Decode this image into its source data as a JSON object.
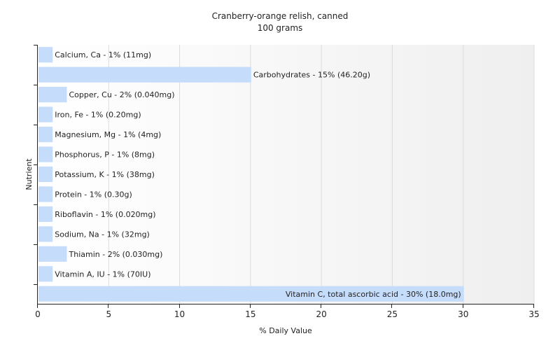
{
  "chart_data": {
    "type": "bar",
    "orientation": "horizontal",
    "title": "Cranberry-orange relish, canned",
    "subtitle": "100 grams",
    "xlabel": "% Daily Value",
    "ylabel": "Nutrient",
    "xlim": [
      0,
      35
    ],
    "xticks": [
      0,
      5,
      10,
      15,
      20,
      25,
      30,
      35
    ],
    "grid": true,
    "bar_color": "#c6dcfb",
    "bars": [
      {
        "label": "Calcium, Ca - 1% (11mg)",
        "value": 1
      },
      {
        "label": "Carbohydrates - 15% (46.20g)",
        "value": 15
      },
      {
        "label": "Copper, Cu - 2% (0.040mg)",
        "value": 2
      },
      {
        "label": "Iron, Fe - 1% (0.20mg)",
        "value": 1
      },
      {
        "label": "Magnesium, Mg - 1% (4mg)",
        "value": 1
      },
      {
        "label": "Phosphorus, P - 1% (8mg)",
        "value": 1
      },
      {
        "label": "Potassium, K - 1% (38mg)",
        "value": 1
      },
      {
        "label": "Protein - 1% (0.30g)",
        "value": 1
      },
      {
        "label": "Riboflavin - 1% (0.020mg)",
        "value": 1
      },
      {
        "label": "Sodium, Na - 1% (32mg)",
        "value": 1
      },
      {
        "label": "Thiamin - 2% (0.030mg)",
        "value": 2
      },
      {
        "label": "Vitamin A, IU - 1% (70IU)",
        "value": 1
      },
      {
        "label": "Vitamin C, total ascorbic acid - 30% (18.0mg)",
        "value": 30
      }
    ]
  }
}
